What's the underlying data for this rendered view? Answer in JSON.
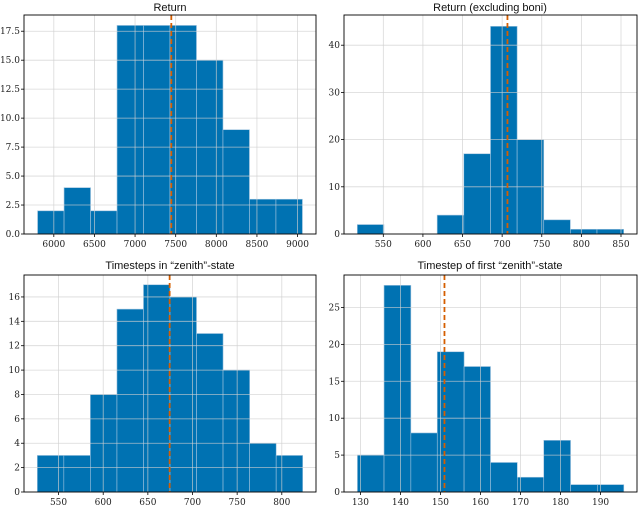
{
  "colors": {
    "bar": "#0072B2",
    "bar_edge": "#9fc3df",
    "mean_line": "#D55E00",
    "grid": "#d0d0d0"
  },
  "chart_data": [
    {
      "type": "bar",
      "title": "Return",
      "bin_edges": [
        5800,
        6126,
        6452,
        6778,
        7104,
        7430,
        7756,
        8082,
        8408,
        8734,
        9060
      ],
      "values": [
        2,
        4,
        2,
        18,
        18,
        18,
        15,
        9,
        3,
        3
      ],
      "mean": 7446,
      "xlim": [
        5633,
        9227
      ],
      "ylim": [
        0,
        18.9
      ],
      "xticks": [
        6000,
        6500,
        7000,
        7500,
        8000,
        8500,
        9000
      ],
      "yticks": [
        0,
        2.5,
        5,
        7.5,
        10,
        12.5,
        15,
        17.5
      ],
      "ytick_decimals": 1,
      "grid": true
    },
    {
      "type": "bar",
      "title": "Return (excluding boni)",
      "bin_edges": [
        517.2,
        550.8,
        584.4,
        618.0,
        651.6,
        685.3,
        718.9,
        752.5,
        786.1,
        819.7,
        853.4
      ],
      "values": [
        2,
        0,
        0,
        4,
        17,
        44,
        20,
        3,
        1,
        1
      ],
      "mean": 706.7,
      "xlim": [
        500.4,
        870.2
      ],
      "ylim": [
        0,
        46.4
      ],
      "xticks": [
        550,
        600,
        650,
        700,
        750,
        800,
        850
      ],
      "yticks": [
        0,
        10,
        20,
        30,
        40
      ],
      "ytick_decimals": 0,
      "grid": true
    },
    {
      "type": "bar",
      "title": "Timesteps in “zenith”-state",
      "bin_edges": [
        526.2,
        555.9,
        585.6,
        615.4,
        645.1,
        674.8,
        704.5,
        734.2,
        764.0,
        793.7,
        823.4
      ],
      "values": [
        3,
        3,
        8,
        15,
        17,
        16,
        13,
        10,
        4,
        3
      ],
      "mean": 674.4,
      "xlim": [
        511.3,
        838.3
      ],
      "ylim": [
        0,
        17.8
      ],
      "xticks": [
        550,
        600,
        650,
        700,
        750,
        800
      ],
      "yticks": [
        0,
        2,
        4,
        6,
        8,
        10,
        12,
        14,
        16
      ],
      "ytick_decimals": 0,
      "grid": true
    },
    {
      "type": "bar",
      "title": "Timestep of first “zenith”-state",
      "bin_edges": [
        129.25,
        135.9,
        142.6,
        149.2,
        155.9,
        162.5,
        169.2,
        175.8,
        182.5,
        189.2,
        195.8
      ],
      "values": [
        5,
        28,
        8,
        19,
        17,
        4,
        2,
        7,
        1,
        1
      ],
      "mean": 151.0,
      "xlim": [
        125.9,
        199.1
      ],
      "ylim": [
        0,
        29.4
      ],
      "xticks": [
        130,
        140,
        150,
        160,
        170,
        180,
        190
      ],
      "yticks": [
        0,
        5,
        10,
        15,
        20,
        25
      ],
      "ytick_decimals": 0,
      "grid": true
    }
  ]
}
